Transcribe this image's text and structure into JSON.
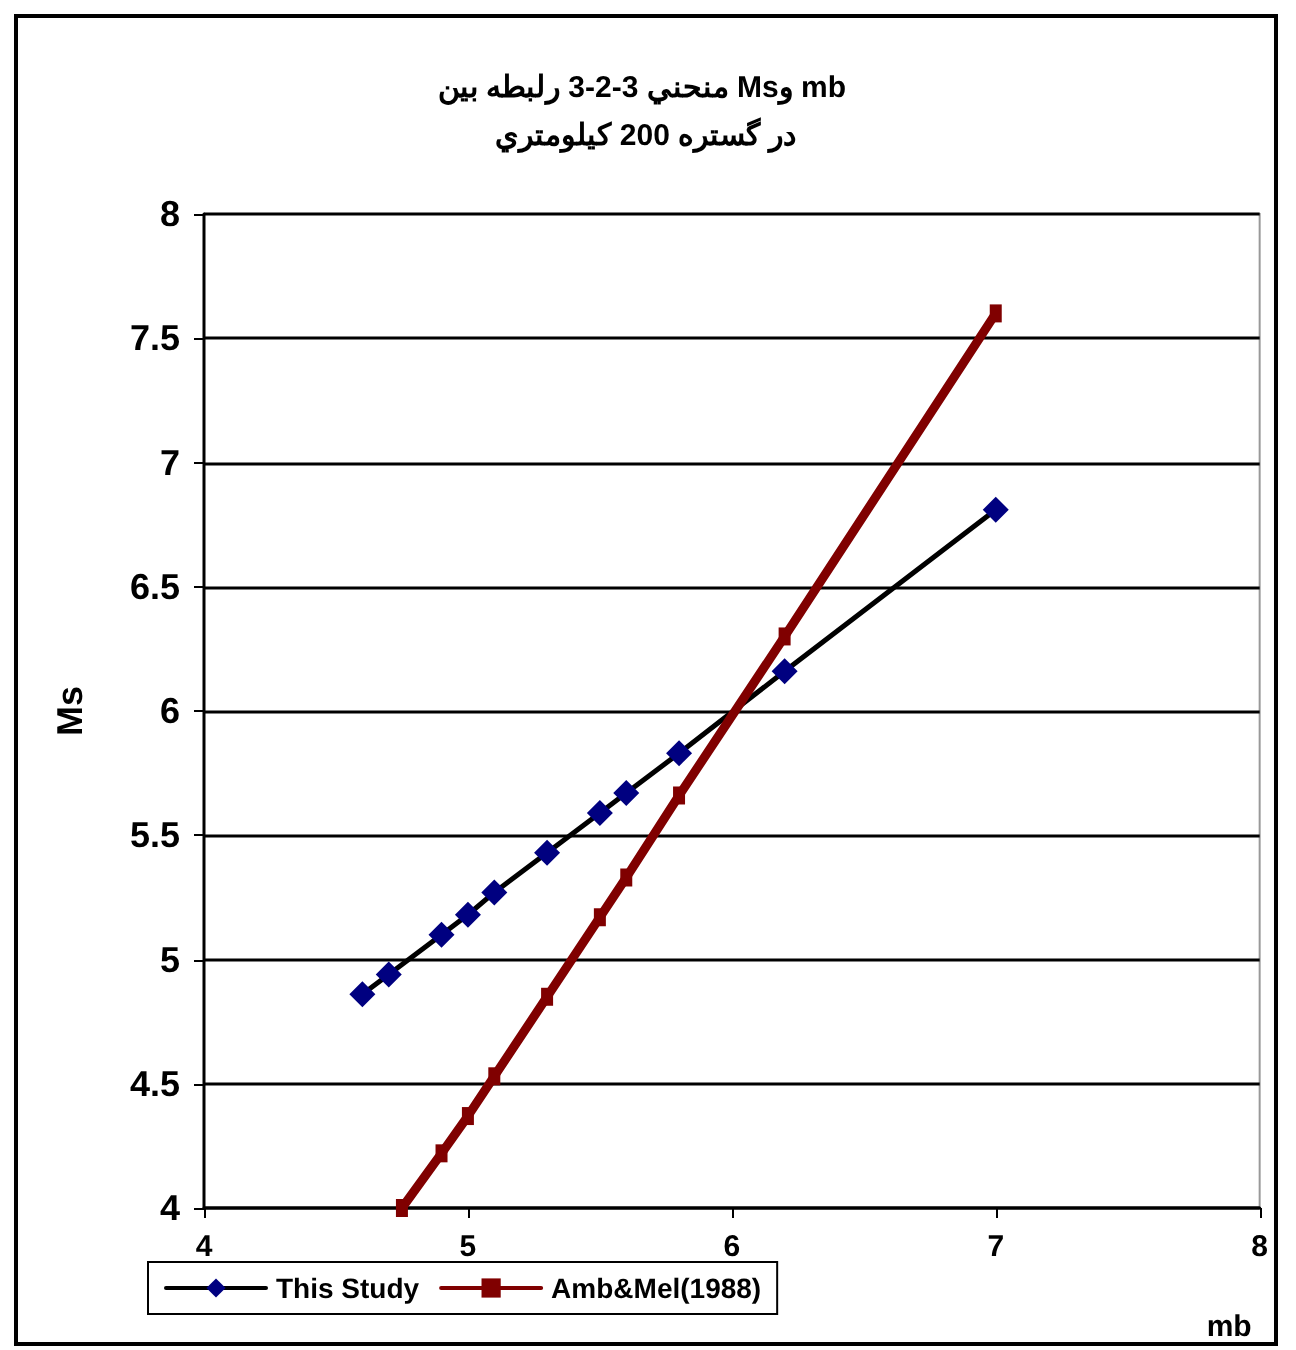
{
  "chart_data": {
    "type": "line",
    "title": "منحني 3-2-3 رلبطه بين Msو mb در گستره 200 كيلومتري",
    "xlabel": "mb",
    "ylabel": "Ms",
    "xlim": [
      4,
      8
    ],
    "xticks": [
      4,
      5,
      6,
      7,
      8
    ],
    "ylim": [
      4,
      8
    ],
    "yticks": [
      4,
      4.5,
      5,
      5.5,
      6,
      6.5,
      7,
      7.5,
      8
    ],
    "grid": "y",
    "legend": "bottom left",
    "line_style": "solid",
    "series": [
      {
        "name": "This Study",
        "color": "#000080",
        "marker": "diamond",
        "x": [
          4.6,
          4.7,
          4.9,
          5.0,
          5.1,
          5.3,
          5.5,
          5.6,
          5.8,
          6.2,
          7.0
        ],
        "values": [
          4.86,
          4.94,
          5.1,
          5.18,
          5.27,
          5.43,
          5.59,
          5.67,
          5.83,
          6.16,
          6.81
        ]
      },
      {
        "name": "Amb&Mel(1988)",
        "color": "#800000",
        "marker": "square",
        "x": [
          4.75,
          4.9,
          5.0,
          5.1,
          5.3,
          5.5,
          5.6,
          5.8,
          6.2,
          7.0
        ],
        "values": [
          4.0,
          4.22,
          4.37,
          4.53,
          4.85,
          5.17,
          5.33,
          5.66,
          6.3,
          7.6
        ]
      }
    ]
  }
}
